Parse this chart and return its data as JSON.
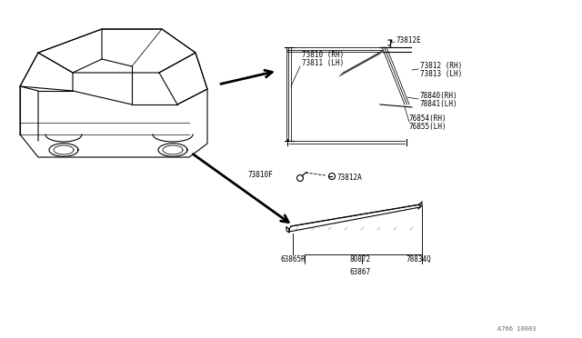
{
  "bg_color": "#ffffff",
  "line_color": "#000000",
  "footnote": "A766 10003",
  "upper_detail": {
    "label_73810": "73810 (RH)",
    "label_73811": "73811 (LH)",
    "label_73812E": "73812E",
    "label_73812": "73812 (RH)",
    "label_73813": "73813 (LH)",
    "label_78840": "78840(RH)",
    "label_78841": "78841(LH)",
    "label_76854": "76854(RH)",
    "label_76855": "76855(LH)",
    "label_73810F": "73810F",
    "label_73812A": "73812A"
  },
  "lower_detail": {
    "label_63865R": "63865R",
    "label_80872": "80872",
    "label_78834Q": "78834Q",
    "label_63867": "63867"
  }
}
